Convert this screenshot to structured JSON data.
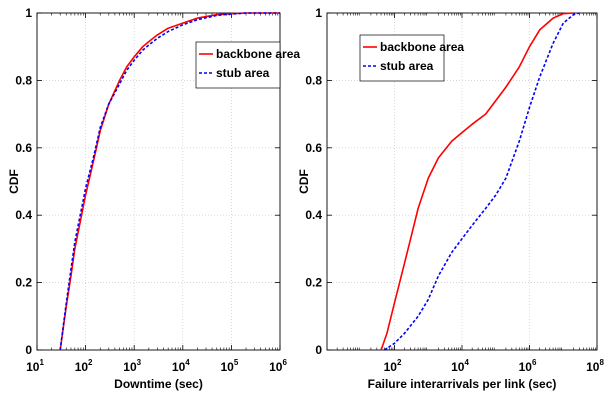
{
  "chart_data": [
    {
      "type": "line",
      "title": "",
      "xlabel": "Downtime (sec)",
      "ylabel": "CDF",
      "xscale": "log",
      "xlim": [
        10,
        1000000
      ],
      "ylim": [
        0,
        1
      ],
      "x_ticks": [
        {
          "base": "10",
          "exp": "1"
        },
        {
          "base": "10",
          "exp": "2"
        },
        {
          "base": "10",
          "exp": "3"
        },
        {
          "base": "10",
          "exp": "4"
        },
        {
          "base": "10",
          "exp": "5"
        },
        {
          "base": "10",
          "exp": "6"
        }
      ],
      "y_ticks": [
        "0",
        "0.2",
        "0.4",
        "0.6",
        "0.8",
        "1"
      ],
      "y_tick_values": [
        0,
        0.2,
        0.4,
        0.6,
        0.8,
        1
      ],
      "grid": true,
      "legend": "top-right",
      "series": [
        {
          "name": "backbone area",
          "color": "#ff0000",
          "dash": "solid",
          "x": [
            30,
            40,
            50,
            60,
            80,
            100,
            150,
            200,
            300,
            500,
            700,
            1000,
            1500,
            2000,
            3000,
            5000,
            10000,
            20000,
            50000,
            100000,
            200000,
            500000,
            1000000
          ],
          "y": [
            0,
            0.13,
            0.22,
            0.3,
            0.39,
            0.46,
            0.57,
            0.65,
            0.73,
            0.8,
            0.84,
            0.87,
            0.9,
            0.915,
            0.935,
            0.955,
            0.97,
            0.985,
            0.995,
            0.998,
            1,
            1,
            1
          ]
        },
        {
          "name": "stub area",
          "color": "#0000ff",
          "dash": "dashed",
          "x": [
            30,
            40,
            50,
            60,
            80,
            100,
            150,
            200,
            300,
            500,
            700,
            1000,
            1500,
            2000,
            3000,
            5000,
            10000,
            20000,
            50000,
            100000,
            200000,
            500000,
            1000000
          ],
          "y": [
            0,
            0.14,
            0.24,
            0.32,
            0.41,
            0.48,
            0.58,
            0.66,
            0.73,
            0.79,
            0.83,
            0.86,
            0.89,
            0.905,
            0.925,
            0.945,
            0.965,
            0.98,
            0.993,
            0.997,
            1,
            1,
            1
          ]
        }
      ]
    },
    {
      "type": "line",
      "title": "",
      "xlabel": "Failure interarrivals per link (sec)",
      "ylabel": "CDF",
      "xscale": "log",
      "xlim": [
        1,
        100000000
      ],
      "ylim": [
        0,
        1
      ],
      "x_ticks": [
        {
          "base": "10",
          "exp": "2"
        },
        {
          "base": "10",
          "exp": "4"
        },
        {
          "base": "10",
          "exp": "6"
        },
        {
          "base": "10",
          "exp": "8"
        }
      ],
      "x_tick_values": [
        100,
        10000,
        1000000,
        100000000
      ],
      "y_ticks": [
        "0",
        "0.2",
        "0.4",
        "0.6",
        "0.8",
        "1"
      ],
      "y_tick_values": [
        0,
        0.2,
        0.4,
        0.6,
        0.8,
        1
      ],
      "grid": true,
      "legend": "top-left",
      "series": [
        {
          "name": "backbone area",
          "color": "#ff0000",
          "dash": "solid",
          "x": [
            40,
            60,
            100,
            200,
            300,
            500,
            1000,
            2000,
            5000,
            10000,
            20000,
            50000,
            100000,
            200000,
            500000,
            1000000,
            2000000,
            5000000,
            10000000,
            20000000
          ],
          "y": [
            0,
            0.05,
            0.14,
            0.26,
            0.33,
            0.42,
            0.51,
            0.57,
            0.62,
            0.645,
            0.67,
            0.7,
            0.74,
            0.78,
            0.84,
            0.9,
            0.95,
            0.985,
            0.998,
            1
          ]
        },
        {
          "name": "stub area",
          "color": "#0000ff",
          "dash": "dashed",
          "x": [
            50,
            100,
            200,
            500,
            1000,
            2000,
            5000,
            10000,
            20000,
            50000,
            100000,
            200000,
            500000,
            1000000,
            2000000,
            5000000,
            10000000,
            20000000,
            30000000
          ],
          "y": [
            0,
            0.02,
            0.05,
            0.1,
            0.15,
            0.22,
            0.29,
            0.33,
            0.37,
            0.42,
            0.46,
            0.51,
            0.62,
            0.72,
            0.81,
            0.91,
            0.97,
            0.995,
            1
          ]
        }
      ]
    }
  ]
}
